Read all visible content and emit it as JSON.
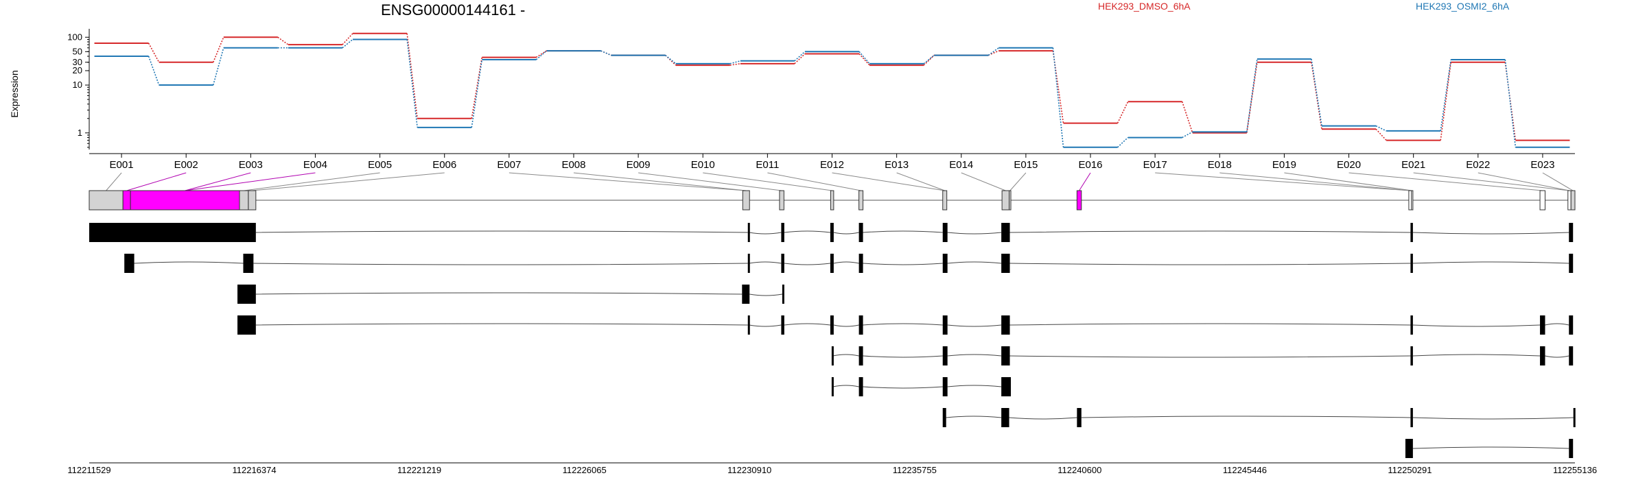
{
  "chart_data": {
    "type": "line",
    "title": "ENSG00000144161 -",
    "ylabel": "Expression",
    "yscale": "log",
    "ylim": [
      0.45,
      150
    ],
    "y_ticks": [
      "1",
      "10",
      "20",
      "30",
      "50",
      "100"
    ],
    "legend_placement": "top-right",
    "categories": [
      "E001",
      "E002",
      "E003",
      "E004",
      "E005",
      "E006",
      "E007",
      "E008",
      "E009",
      "E010",
      "E011",
      "E012",
      "E013",
      "E014",
      "E015",
      "E016",
      "E017",
      "E018",
      "E019",
      "E020",
      "E021",
      "E022",
      "E023"
    ],
    "series": [
      {
        "name": "HEK293_DMSO_6hA",
        "color": "#d62728",
        "values": [
          75,
          30,
          100,
          70,
          120,
          2.0,
          38,
          52,
          42,
          26,
          28,
          45,
          26,
          42,
          52,
          1.6,
          4.5,
          1.0,
          30,
          1.2,
          0.7,
          30,
          0.7
        ]
      },
      {
        "name": "HEK293_OSMI2_6hA",
        "color": "#1f77b4",
        "values": [
          40,
          10,
          60,
          60,
          90,
          1.3,
          34,
          52,
          42,
          28,
          32,
          50,
          28,
          42,
          60,
          0.5,
          0.8,
          1.05,
          35,
          1.4,
          1.1,
          34,
          0.5
        ]
      }
    ],
    "genomic_coordinates": [
      "112211529",
      "112216374",
      "112221219",
      "112226065",
      "112230910",
      "112235755",
      "112240600",
      "112245446",
      "112250291",
      "112255136"
    ],
    "coord_range": [
      112211529,
      112255136
    ],
    "gene_model": {
      "exons": [
        [
          112211529,
          112212520
        ],
        [
          112212520,
          112212740
        ],
        [
          112212740,
          112215940
        ],
        [
          112215940,
          112216200
        ],
        [
          112216200,
          112216420
        ],
        [
          112230710,
          112230910
        ],
        [
          112231790,
          112231920
        ],
        [
          112233290,
          112233380
        ],
        [
          112234120,
          112234240
        ],
        [
          112236580,
          112236700
        ],
        [
          112238320,
          112238530
        ],
        [
          112238530,
          112238580
        ],
        [
          112240520,
          112240650
        ],
        [
          112250260,
          112250340
        ],
        [
          112250340,
          112250370
        ],
        [
          112254110,
          112254260
        ],
        [
          112254930,
          112255020
        ],
        [
          112255020,
          112255136
        ]
      ],
      "highlight_exons": [
        1,
        2,
        12
      ],
      "white_exons": [
        13,
        14,
        15,
        16
      ]
    },
    "transcripts": [
      [
        [
          112211529,
          112216420
        ],
        [
          112230860,
          112230900
        ],
        [
          112231840,
          112231930
        ],
        [
          112233280,
          112233380
        ],
        [
          112234120,
          112234240
        ],
        [
          112236580,
          112236720
        ],
        [
          112238300,
          112238550
        ],
        [
          112250310,
          112250380
        ],
        [
          112254960,
          112255080
        ]
      ],
      [
        [
          112212560,
          112212850
        ],
        [
          112216050,
          112216350
        ],
        [
          112230860,
          112230900
        ],
        [
          112231840,
          112231930
        ],
        [
          112233280,
          112233380
        ],
        [
          112234120,
          112234240
        ],
        [
          112236580,
          112236720
        ],
        [
          112238300,
          112238550
        ],
        [
          112250310,
          112250380
        ],
        [
          112254960,
          112255080
        ]
      ],
      [
        [
          112215880,
          112216420
        ],
        [
          112230690,
          112230910
        ],
        [
          112231870,
          112231930
        ]
      ],
      [
        [
          112215880,
          112216420
        ],
        [
          112230860,
          112230900
        ],
        [
          112231840,
          112231930
        ],
        [
          112233280,
          112233380
        ],
        [
          112234120,
          112234240
        ],
        [
          112236580,
          112236720
        ],
        [
          112238300,
          112238550
        ],
        [
          112250310,
          112250380
        ],
        [
          112254110,
          112254260
        ],
        [
          112254960,
          112255080
        ]
      ],
      [
        [
          112233320,
          112233360
        ],
        [
          112234120,
          112234240
        ],
        [
          112236580,
          112236720
        ],
        [
          112238300,
          112238550
        ],
        [
          112250310,
          112250380
        ],
        [
          112254110,
          112254260
        ],
        [
          112254960,
          112255080
        ]
      ],
      [
        [
          112233320,
          112233360
        ],
        [
          112234120,
          112234240
        ],
        [
          112236580,
          112236720
        ],
        [
          112238300,
          112238580
        ]
      ],
      [
        [
          112236580,
          112236680
        ],
        [
          112238300,
          112238530
        ],
        [
          112240520,
          112240650
        ],
        [
          112250310,
          112250380
        ],
        [
          112255090,
          112255120
        ]
      ],
      [
        [
          112250160,
          112250380
        ],
        [
          112254960,
          112255080
        ]
      ]
    ]
  }
}
